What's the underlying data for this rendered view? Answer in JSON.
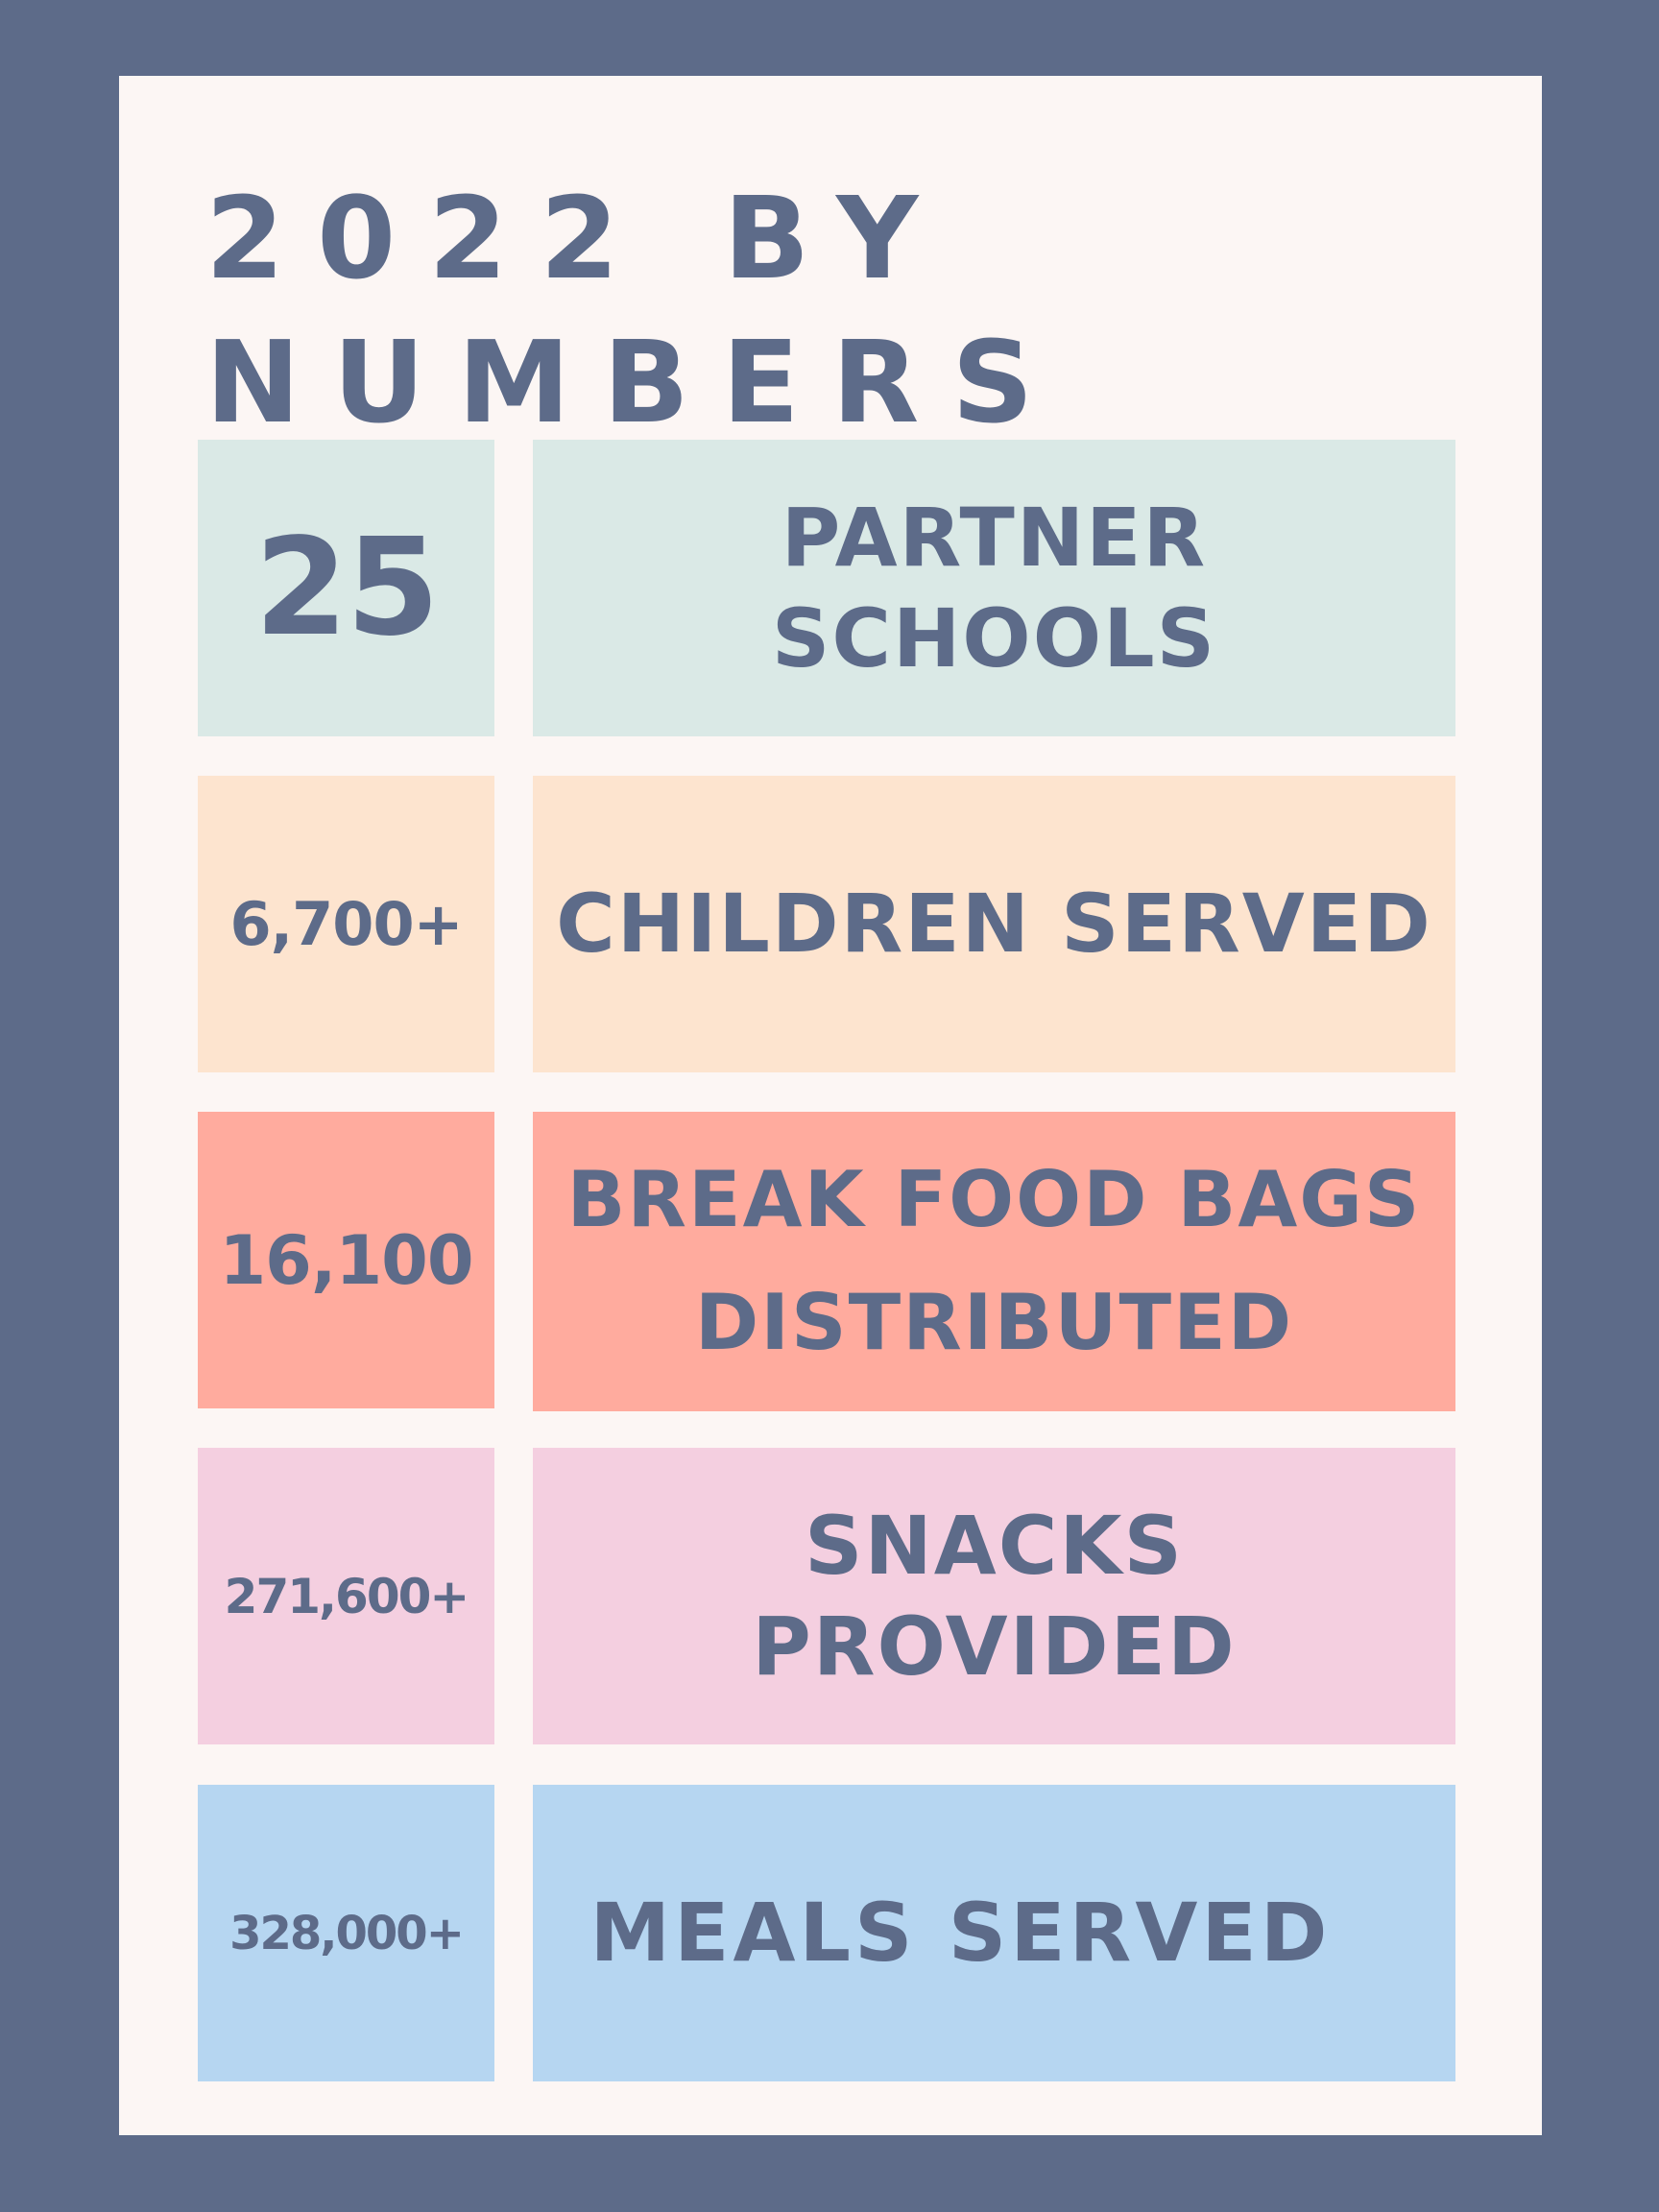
{
  "title": {
    "line1": "2022 BY",
    "line2": "NUMBERS"
  },
  "rows": [
    {
      "number": "25",
      "label": "PARTNER SCHOOLS",
      "color": "#dae9e6"
    },
    {
      "number": "6,700+",
      "label": "CHILDREN SERVED",
      "color": "#fde4cf"
    },
    {
      "number": "16,100",
      "label_line1": "BREAK FOOD BAGS",
      "label_line2": "DISTRIBUTED",
      "color": "#ffab9e"
    },
    {
      "number": "271,600+",
      "label": "SNACKS PROVIDED",
      "color": "#f4cfe0"
    },
    {
      "number": "328,000+",
      "label": "MEALS SERVED",
      "color": "#b6d6f1"
    }
  ],
  "colors": {
    "frame": "#5d6b89",
    "card": "#fcf6f4",
    "text": "#5d6b89"
  }
}
